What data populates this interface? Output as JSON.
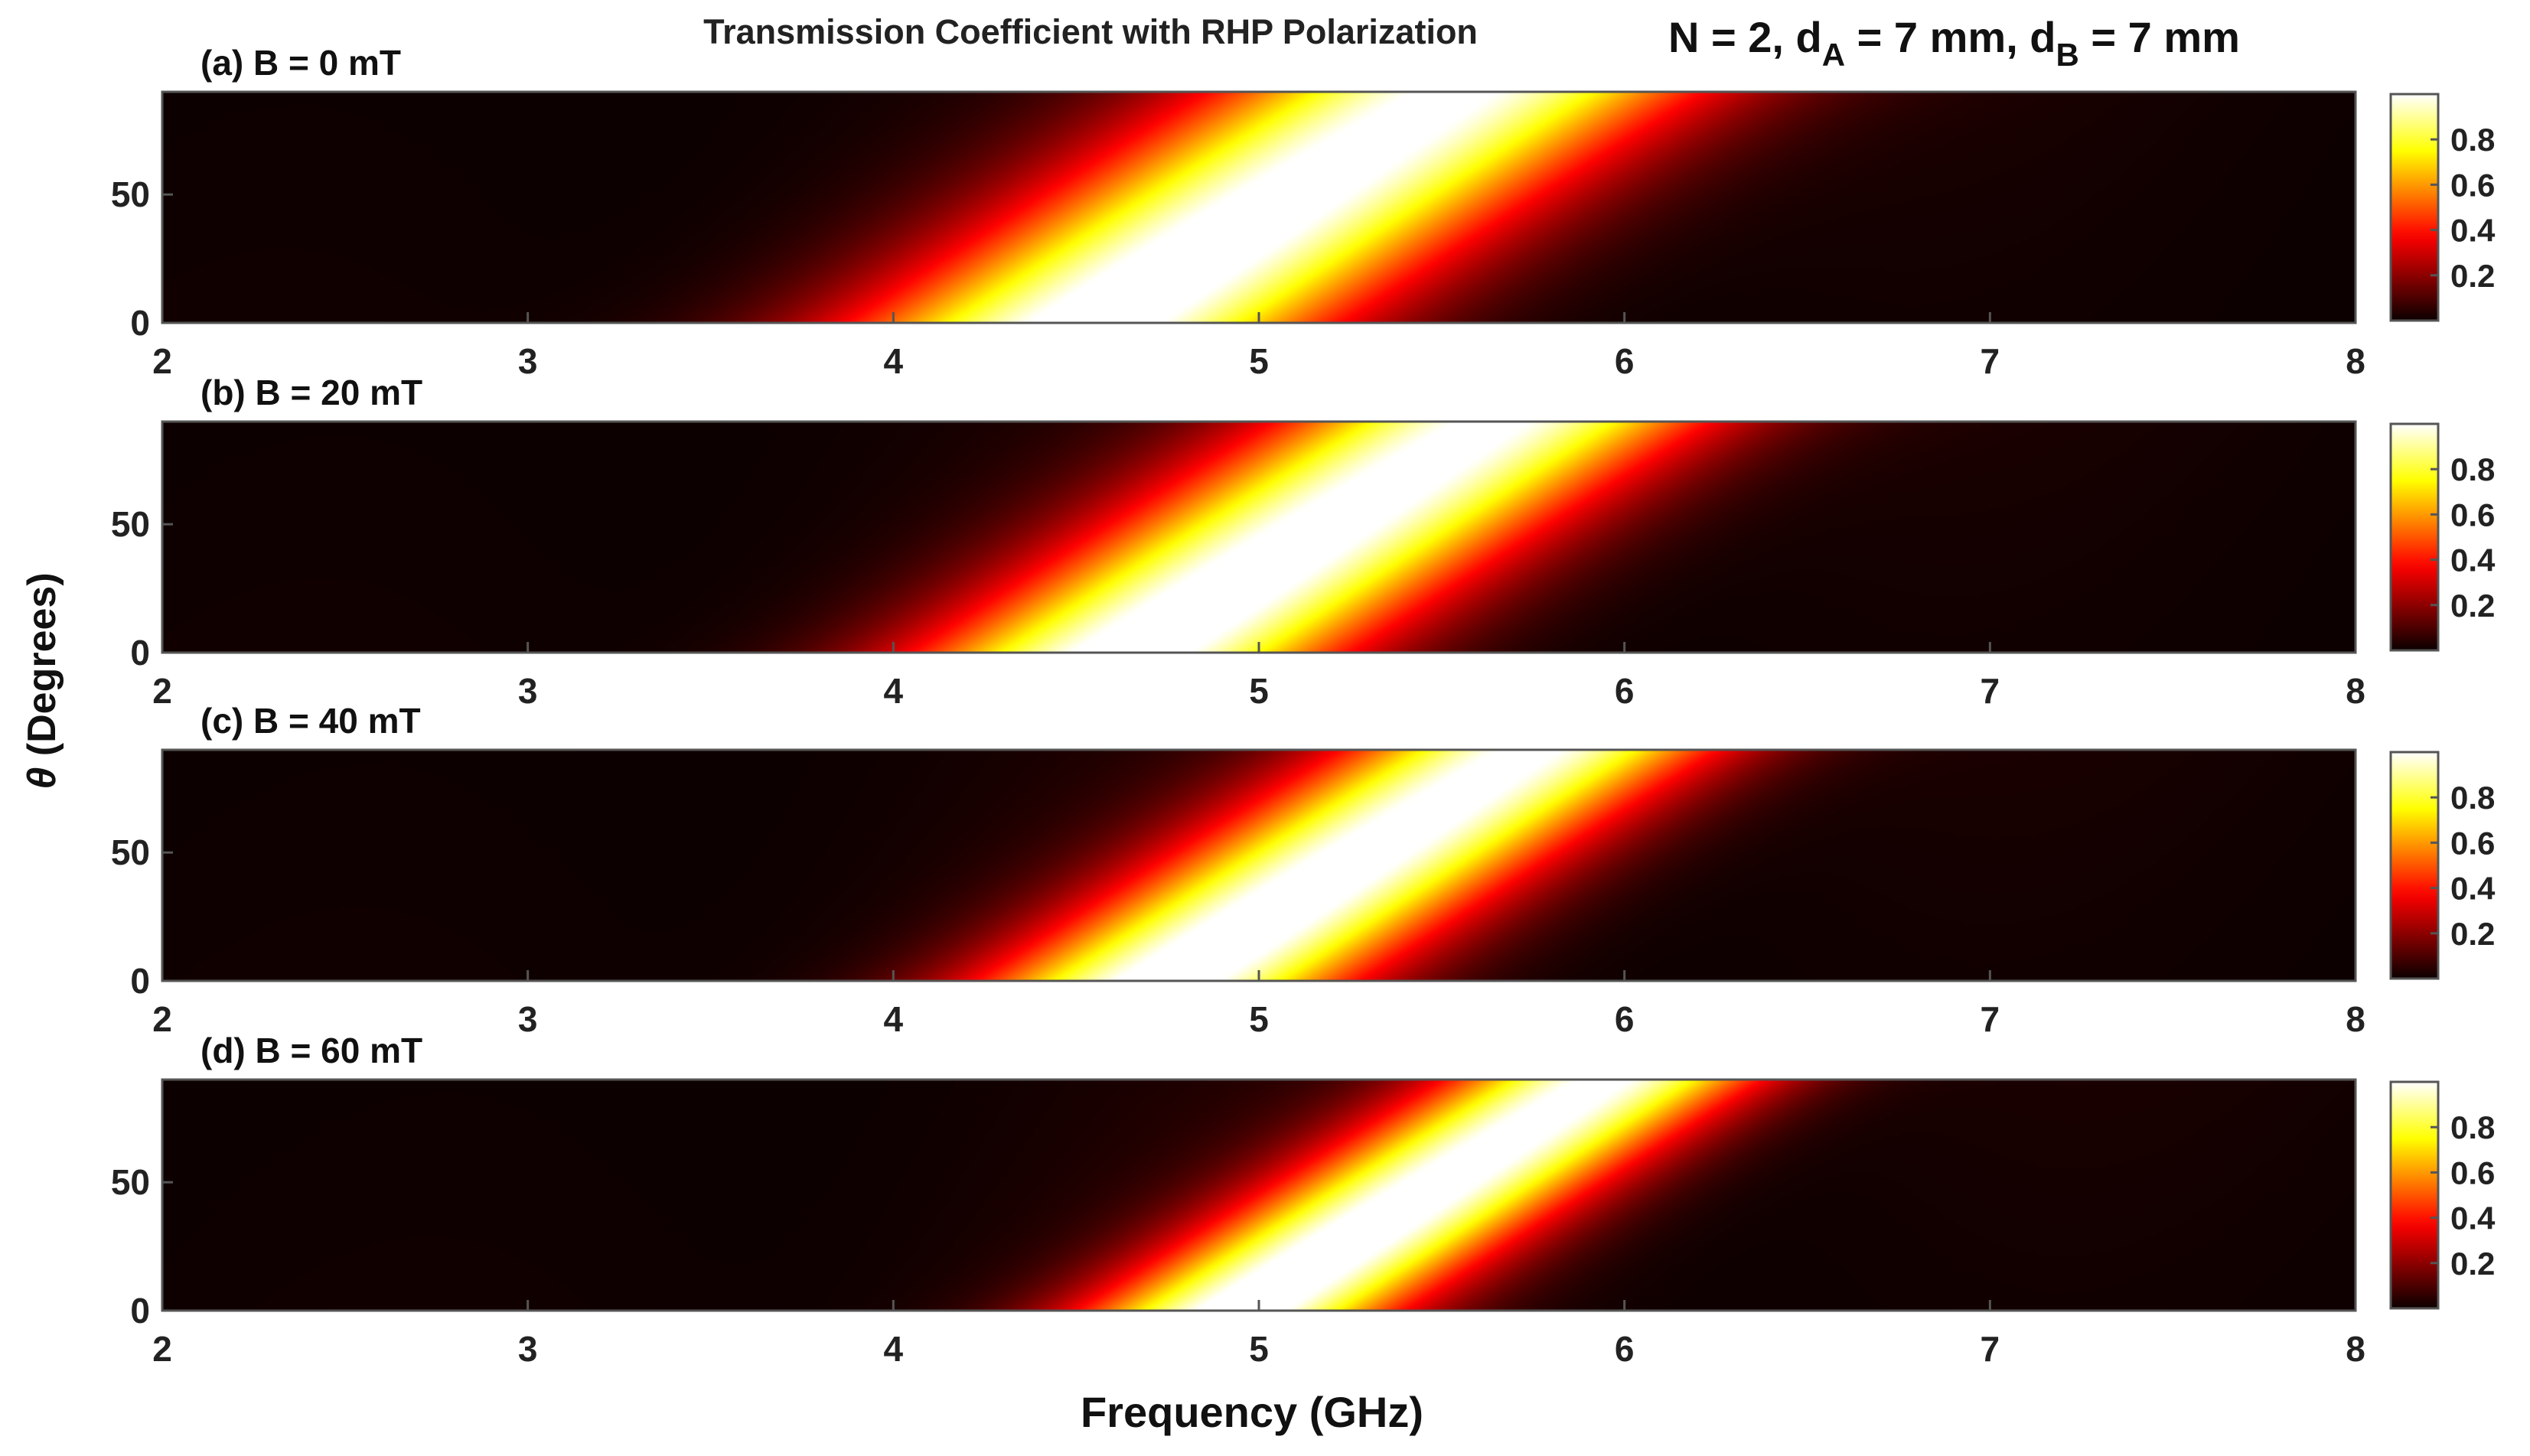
{
  "figure": {
    "title": "Transmission Coefficient with RHP Polarization",
    "params_main": "N = 2, d",
    "params_sub_a": "A",
    "params_mid": " = 7 mm, d",
    "params_sub_b": "B",
    "params_end": " = 7 mm",
    "ylabel_symbol": "θ",
    "ylabel_text": " (Degrees)",
    "xlabel": "Frequency (GHz)"
  },
  "chart_data": [
    {
      "type": "heatmap",
      "label": "(a) B = 0 mT",
      "B_mT": 0,
      "xlim": [
        2,
        8
      ],
      "ylim": [
        0,
        90
      ],
      "xticks": [
        2,
        3,
        4,
        5,
        6,
        7,
        8
      ],
      "yticks": [
        0,
        50
      ],
      "colorbar_ticks": [
        0.2,
        0.4,
        0.6,
        0.8
      ],
      "clim": [
        0,
        1
      ],
      "colormap": "hot",
      "peak_ridge": {
        "theta": [
          0,
          45,
          90
        ],
        "frequency": [
          4.55,
          5.05,
          5.55
        ]
      },
      "peak_value": 1.0,
      "bandwidth_ghz": 0.85
    },
    {
      "type": "heatmap",
      "label": "(b) B = 20 mT",
      "B_mT": 20,
      "xlim": [
        2,
        8
      ],
      "ylim": [
        0,
        90
      ],
      "xticks": [
        2,
        3,
        4,
        5,
        6,
        7,
        8
      ],
      "yticks": [
        0,
        50
      ],
      "colorbar_ticks": [
        0.2,
        0.4,
        0.6,
        0.8
      ],
      "clim": [
        0,
        1
      ],
      "colormap": "hot",
      "peak_ridge": {
        "theta": [
          0,
          45,
          90
        ],
        "frequency": [
          4.65,
          5.15,
          5.65
        ]
      },
      "peak_value": 1.0,
      "bandwidth_ghz": 0.75
    },
    {
      "type": "heatmap",
      "label": "(c) B = 40 mT",
      "B_mT": 40,
      "xlim": [
        2,
        8
      ],
      "ylim": [
        0,
        90
      ],
      "xticks": [
        2,
        3,
        4,
        5,
        6,
        7,
        8
      ],
      "yticks": [
        0,
        50
      ],
      "colorbar_ticks": [
        0.2,
        0.4,
        0.6,
        0.8
      ],
      "clim": [
        0,
        1
      ],
      "colormap": "hot",
      "peak_ridge": {
        "theta": [
          0,
          45,
          90
        ],
        "frequency": [
          4.75,
          5.25,
          5.75
        ]
      },
      "peak_value": 1.0,
      "bandwidth_ghz": 0.65
    },
    {
      "type": "heatmap",
      "label": "(d) B = 60 mT",
      "B_mT": 60,
      "xlim": [
        2,
        8
      ],
      "ylim": [
        0,
        90
      ],
      "xticks": [
        2,
        3,
        4,
        5,
        6,
        7,
        8
      ],
      "yticks": [
        0,
        50
      ],
      "colorbar_ticks": [
        0.2,
        0.4,
        0.6,
        0.8
      ],
      "clim": [
        0,
        1
      ],
      "colormap": "hot",
      "peak_ridge": {
        "theta": [
          0,
          45,
          90
        ],
        "frequency": [
          4.95,
          5.45,
          5.95
        ]
      },
      "peak_value": 1.0,
      "bandwidth_ghz": 0.55
    }
  ]
}
